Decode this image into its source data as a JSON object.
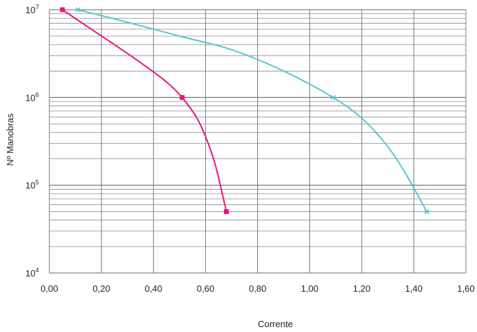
{
  "chart_data": {
    "type": "line",
    "xlabel": "Corrente",
    "ylabel": "Nº Manobras",
    "xlim": [
      0,
      1.6
    ],
    "ylim": [
      10000,
      10000000
    ],
    "y_scale": "log",
    "grid": true,
    "x_ticks": [
      {
        "value": 0.0,
        "label": "0,00"
      },
      {
        "value": 0.2,
        "label": "0,20"
      },
      {
        "value": 0.4,
        "label": "0,40"
      },
      {
        "value": 0.6,
        "label": "0,60"
      },
      {
        "value": 0.8,
        "label": "0,80"
      },
      {
        "value": 1.0,
        "label": "1,00"
      },
      {
        "value": 1.2,
        "label": "1,20"
      },
      {
        "value": 1.4,
        "label": "1,40"
      },
      {
        "value": 1.6,
        "label": "1,60"
      }
    ],
    "y_ticks": [
      {
        "value": 10000,
        "base": "10",
        "exp": "4"
      },
      {
        "value": 100000,
        "base": "10",
        "exp": "5"
      },
      {
        "value": 1000000,
        "base": "10",
        "exp": "6"
      },
      {
        "value": 10000000,
        "base": "10",
        "exp": "7"
      }
    ],
    "series": [
      {
        "color": "#e5177b",
        "marker": "square",
        "points": [
          {
            "x": 0.05,
            "y": 10000000
          },
          {
            "x": 0.51,
            "y": 1000000
          },
          {
            "x": 0.68,
            "y": 50000
          }
        ],
        "curve_samples": [
          {
            "x": 0.05,
            "y": 10000000
          },
          {
            "x": 0.15,
            "y": 6300000
          },
          {
            "x": 0.25,
            "y": 4000000
          },
          {
            "x": 0.35,
            "y": 2500000
          },
          {
            "x": 0.45,
            "y": 1500000
          },
          {
            "x": 0.51,
            "y": 1000000
          },
          {
            "x": 0.57,
            "y": 560000
          },
          {
            "x": 0.61,
            "y": 300000
          },
          {
            "x": 0.64,
            "y": 160000
          },
          {
            "x": 0.68,
            "y": 50000
          }
        ]
      },
      {
        "color": "#5bc5d0",
        "marker": "x",
        "points": [
          {
            "x": 0.11,
            "y": 10000000
          },
          {
            "x": 1.09,
            "y": 1000000
          },
          {
            "x": 1.45,
            "y": 50000
          }
        ],
        "curve_samples": [
          {
            "x": 0.11,
            "y": 10000000
          },
          {
            "x": 0.3,
            "y": 7200000
          },
          {
            "x": 0.5,
            "y": 5000000
          },
          {
            "x": 0.7,
            "y": 3500000
          },
          {
            "x": 0.9,
            "y": 2000000
          },
          {
            "x": 1.09,
            "y": 1000000
          },
          {
            "x": 1.2,
            "y": 580000
          },
          {
            "x": 1.29,
            "y": 300000
          },
          {
            "x": 1.36,
            "y": 150000
          },
          {
            "x": 1.45,
            "y": 50000
          }
        ]
      }
    ]
  }
}
